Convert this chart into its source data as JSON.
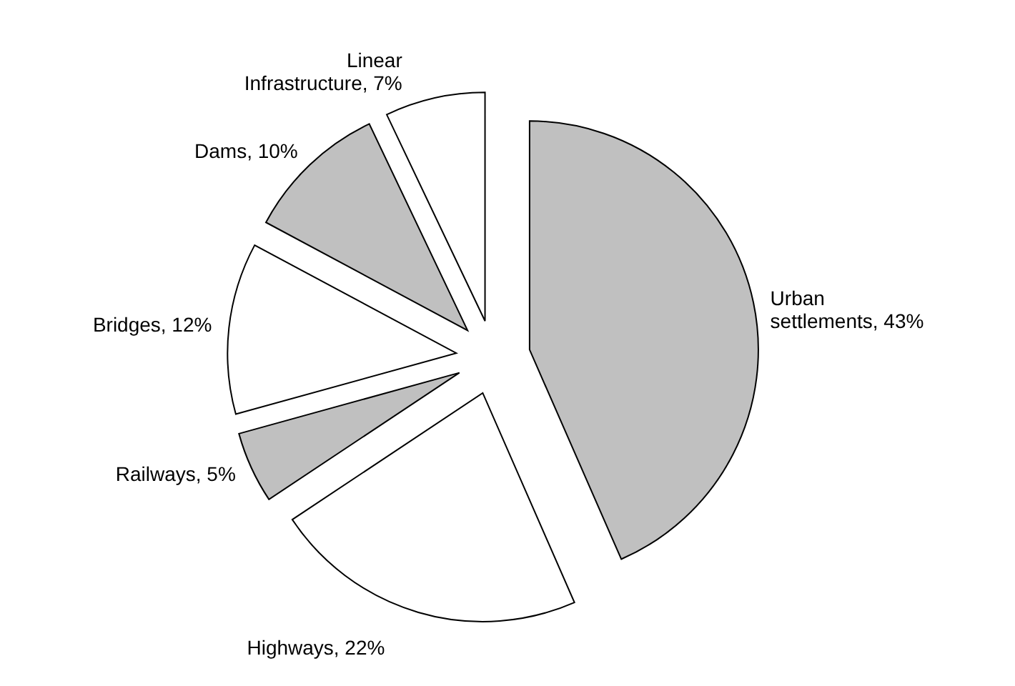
{
  "chart_data": {
    "type": "pie",
    "categories": [
      "Urban settlements",
      "Highways",
      "Railways",
      "Bridges",
      "Dams",
      "Linear Infrastructure"
    ],
    "values": [
      43,
      22,
      5,
      12,
      10,
      7
    ],
    "value_labels": [
      "43%",
      "22%",
      "5%",
      "12%",
      "10%",
      "7%"
    ],
    "colors": [
      "#c0c0c0",
      "#ffffff",
      "#c0c0c0",
      "#ffffff",
      "#c0c0c0",
      "#ffffff"
    ]
  }
}
